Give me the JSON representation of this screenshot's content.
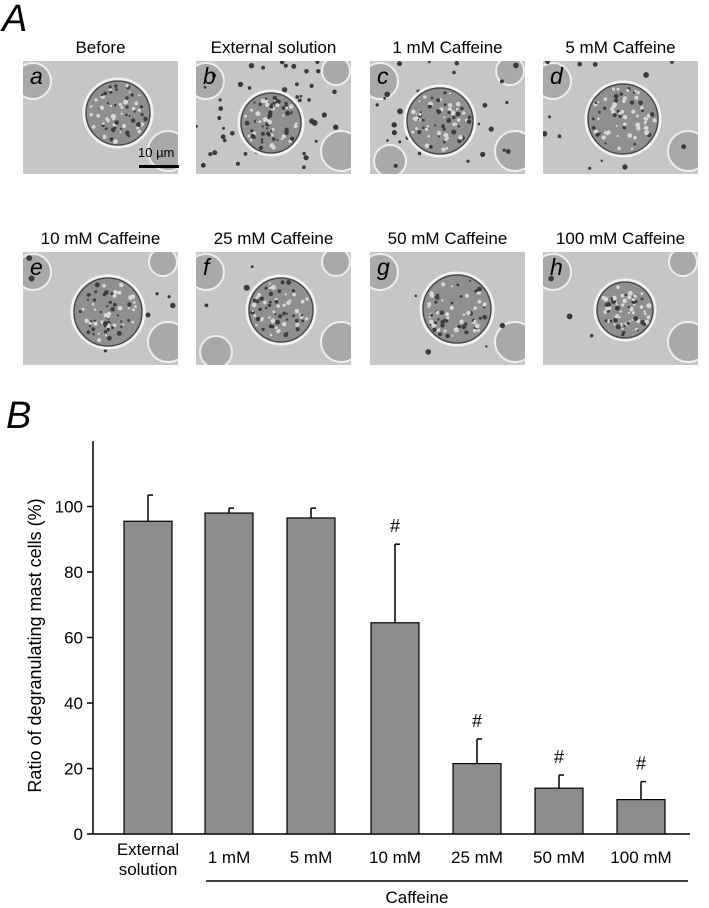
{
  "panels": {
    "a_label": "A",
    "b_label": "B"
  },
  "micrographs": {
    "rows": [
      [
        {
          "sub": "a",
          "title": "Before"
        },
        {
          "sub": "b",
          "title": "External solution"
        },
        {
          "sub": "c",
          "title": "1 mM Caffeine"
        },
        {
          "sub": "d",
          "title": "5 mM Caffeine"
        }
      ],
      [
        {
          "sub": "e",
          "title": "10 mM Caffeine"
        },
        {
          "sub": "f",
          "title": "25 mM Caffeine"
        },
        {
          "sub": "g",
          "title": "50 mM Caffeine"
        },
        {
          "sub": "h",
          "title": "100 mM Caffeine"
        }
      ]
    ],
    "scale_bar_label": "10 µm"
  },
  "chart_data": {
    "type": "bar",
    "categories": [
      "External\nsolution",
      "1 mM",
      "5 mM",
      "10 mM",
      "25 mM",
      "50 mM",
      "100 mM"
    ],
    "values": [
      95.5,
      98,
      96.5,
      64.5,
      21.5,
      14,
      10.5
    ],
    "errors": [
      8,
      1.5,
      3,
      24,
      7.5,
      4,
      5.5
    ],
    "significance": [
      "",
      "",
      "",
      "#",
      "#",
      "#",
      "#"
    ],
    "ylabel": "Ratio of degranulating mast cells  (%)",
    "group_label": "Caffeine",
    "ylim": [
      0,
      120
    ],
    "yticks": [
      0,
      20,
      40,
      60,
      80,
      100
    ],
    "bar_color": "#8c8c8c",
    "grid": false
  }
}
